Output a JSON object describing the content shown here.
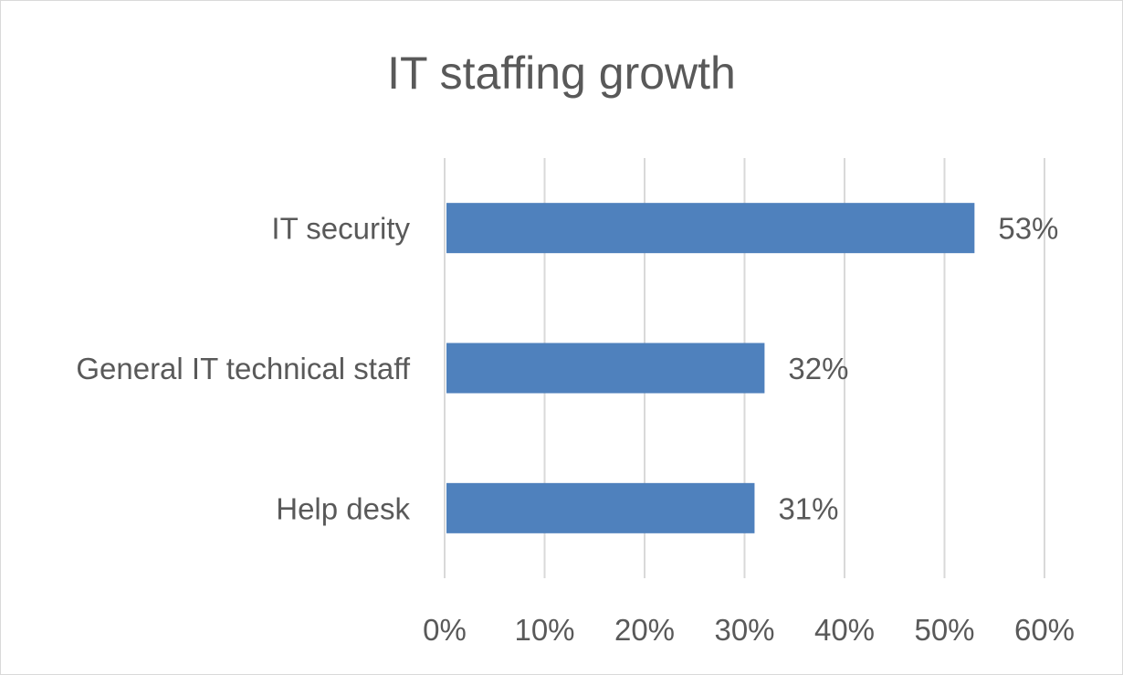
{
  "chart_data": {
    "type": "bar",
    "orientation": "horizontal",
    "title": "IT staffing growth",
    "categories": [
      "IT security",
      "General IT technical staff",
      "Help desk"
    ],
    "values": [
      53,
      32,
      31
    ],
    "value_unit": "%",
    "xlim": [
      0,
      60
    ],
    "x_ticks": [
      0,
      10,
      20,
      30,
      40,
      50,
      60
    ],
    "x_tick_labels": [
      "0%",
      "10%",
      "20%",
      "30%",
      "40%",
      "50%",
      "60%"
    ],
    "data_labels": [
      "53%",
      "32%",
      "31%"
    ],
    "grid": true,
    "legend": "none",
    "colors": {
      "bar": "#4f81bd",
      "text": "#595959",
      "grid": "#d9d9d9"
    }
  }
}
